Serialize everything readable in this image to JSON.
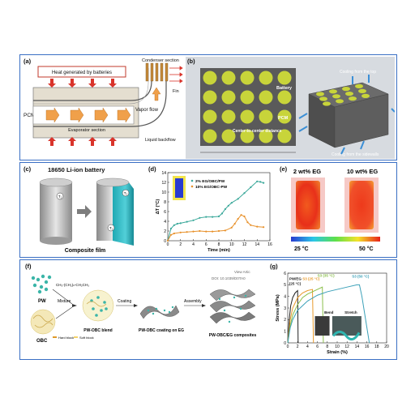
{
  "panel_a": {
    "label": "(a)",
    "heat_text": "Heat generated by batteries",
    "condenser": "Condenser section",
    "fin": "Fin",
    "pcmp": "PCMP",
    "vapor": "Vapor flow",
    "evaporator": "Evaporator section",
    "backflow": "Liquid backflow"
  },
  "panel_b": {
    "label": "(b)",
    "battery": "Battery",
    "pcm": "PCM",
    "center": "Center-to-center distance",
    "cool_top": "Cooling from the top",
    "cool_side": "Cooling from the sidewalls",
    "colors": {
      "battery": "#c8d43a",
      "pcm": "#5a5a5a"
    }
  },
  "panel_c": {
    "label": "(c)",
    "title": "18650 Li-ion battery",
    "t1": "T₁",
    "t2": "T₂",
    "t3": "T₁",
    "film": "Composite film"
  },
  "panel_d": {
    "label": "(d)",
    "ylabel": "ΔT (°C)",
    "xlabel": "Time (min)",
    "legend1": "2% EG/OBC/PW",
    "legend2": "10% EG/OBC-PW",
    "yticks": [
      "0",
      "2",
      "4",
      "6",
      "8",
      "10",
      "12",
      "14"
    ],
    "xticks": [
      "0",
      "2",
      "4",
      "6",
      "8",
      "10",
      "12",
      "14",
      "16"
    ]
  },
  "panel_e": {
    "label": "(e)",
    "title1": "2 wt% EG",
    "title2": "10 wt% EG",
    "low": "25 °C",
    "high": "50 °C"
  },
  "panel_f": {
    "label": "(f)",
    "pw": "PW",
    "formula": "CH₃-(CH₂)ₙ-CH₂CH₃",
    "mixture": "Mixture",
    "coating": "Coating",
    "assembly": "Assembly",
    "obc": "OBC",
    "hard": "Hard block",
    "soft": "Soft block",
    "blend": "PW-OBC blend",
    "coat_eg": "PW-OBC coating on EG",
    "composite": "PW-OBC/EG composites",
    "view_article": "View Artic",
    "doi": "DOI: 10.1039/D0TA0"
  },
  "panel_g": {
    "label": "(g)",
    "ylabel": "Stress (MPa)",
    "xlabel": "Strain (%)",
    "pweg": "PW/EG",
    "pweg_temp": "(25 °C)",
    "s3a": "S3 (25 °C)",
    "s3b": "S3 (35 °C)",
    "s3c": "S3 (50 °C)",
    "bend": "Bend",
    "stretch": "Stretch",
    "yticks": [
      "0",
      "1",
      "2",
      "3",
      "4",
      "5",
      "6"
    ],
    "xticks": [
      "0",
      "2",
      "4",
      "6",
      "8",
      "10",
      "12",
      "14",
      "16",
      "18",
      "20"
    ]
  },
  "chart_data": [
    {
      "type": "line",
      "panel": "d",
      "xlabel": "Time (min)",
      "ylabel": "ΔT (°C)",
      "xlim": [
        0,
        16
      ],
      "ylim": [
        0,
        14
      ],
      "series": [
        {
          "name": "2% EG/OBC/PW",
          "color": "#3aa89a",
          "x": [
            0,
            0.5,
            1,
            1.5,
            2,
            3,
            4,
            5,
            6,
            7,
            8,
            8.5,
            9,
            9.5,
            10,
            11,
            12,
            13,
            14,
            14.5,
            15
          ],
          "y": [
            0,
            2.5,
            3.2,
            3.5,
            3.6,
            3.9,
            4.2,
            4.7,
            4.9,
            4.9,
            5.0,
            5.6,
            6.5,
            7.2,
            7.8,
            8.6,
            9.8,
            11.0,
            12.2,
            12.1,
            11.9
          ]
        },
        {
          "name": "10% EG/OBC-PW",
          "color": "#e8912b",
          "x": [
            0,
            0.5,
            1,
            2,
            3,
            4,
            5,
            6,
            7,
            8,
            9,
            10,
            10.5,
            11,
            11.5,
            12,
            12.5,
            13,
            14,
            15
          ],
          "y": [
            0,
            1.2,
            1.5,
            1.7,
            1.8,
            1.9,
            2.0,
            1.9,
            1.9,
            2.0,
            2.1,
            2.7,
            3.5,
            4.5,
            5.3,
            5.0,
            3.8,
            3.2,
            2.9,
            2.8
          ]
        }
      ]
    },
    {
      "type": "line",
      "panel": "g",
      "xlabel": "Strain (%)",
      "ylabel": "Stress (MPa)",
      "xlim": [
        0,
        20
      ],
      "ylim": [
        0,
        6
      ],
      "series": [
        {
          "name": "PW/EG",
          "color": "#222222",
          "x": [
            0,
            0.3,
            0.6,
            1.0,
            1.5,
            2.0,
            2.1
          ],
          "y": [
            0,
            2.0,
            3.2,
            3.9,
            4.3,
            4.5,
            0
          ]
        },
        {
          "name": "S3 (25 °C)",
          "color": "#e89a2b",
          "x": [
            0,
            0.5,
            1,
            2,
            3,
            4,
            5,
            5.2
          ],
          "y": [
            0,
            2.0,
            3.0,
            3.9,
            4.3,
            4.5,
            4.6,
            0
          ]
        },
        {
          "name": "S3 (35 °C)",
          "color": "#8abf4a",
          "x": [
            0,
            0.5,
            1,
            2,
            3,
            4,
            6,
            7,
            7.2
          ],
          "y": [
            0,
            1.5,
            2.4,
            3.3,
            3.9,
            4.2,
            4.6,
            4.8,
            0
          ]
        },
        {
          "name": "S3 (50 °C)",
          "color": "#3aa0b8",
          "x": [
            0,
            0.5,
            1,
            2,
            4,
            6,
            8,
            10,
            12,
            14,
            14.5,
            15,
            16.5
          ],
          "y": [
            0,
            1.3,
            2.0,
            2.8,
            3.6,
            4.1,
            4.4,
            4.6,
            4.8,
            5.0,
            5.0,
            4.0,
            0
          ]
        }
      ]
    }
  ]
}
